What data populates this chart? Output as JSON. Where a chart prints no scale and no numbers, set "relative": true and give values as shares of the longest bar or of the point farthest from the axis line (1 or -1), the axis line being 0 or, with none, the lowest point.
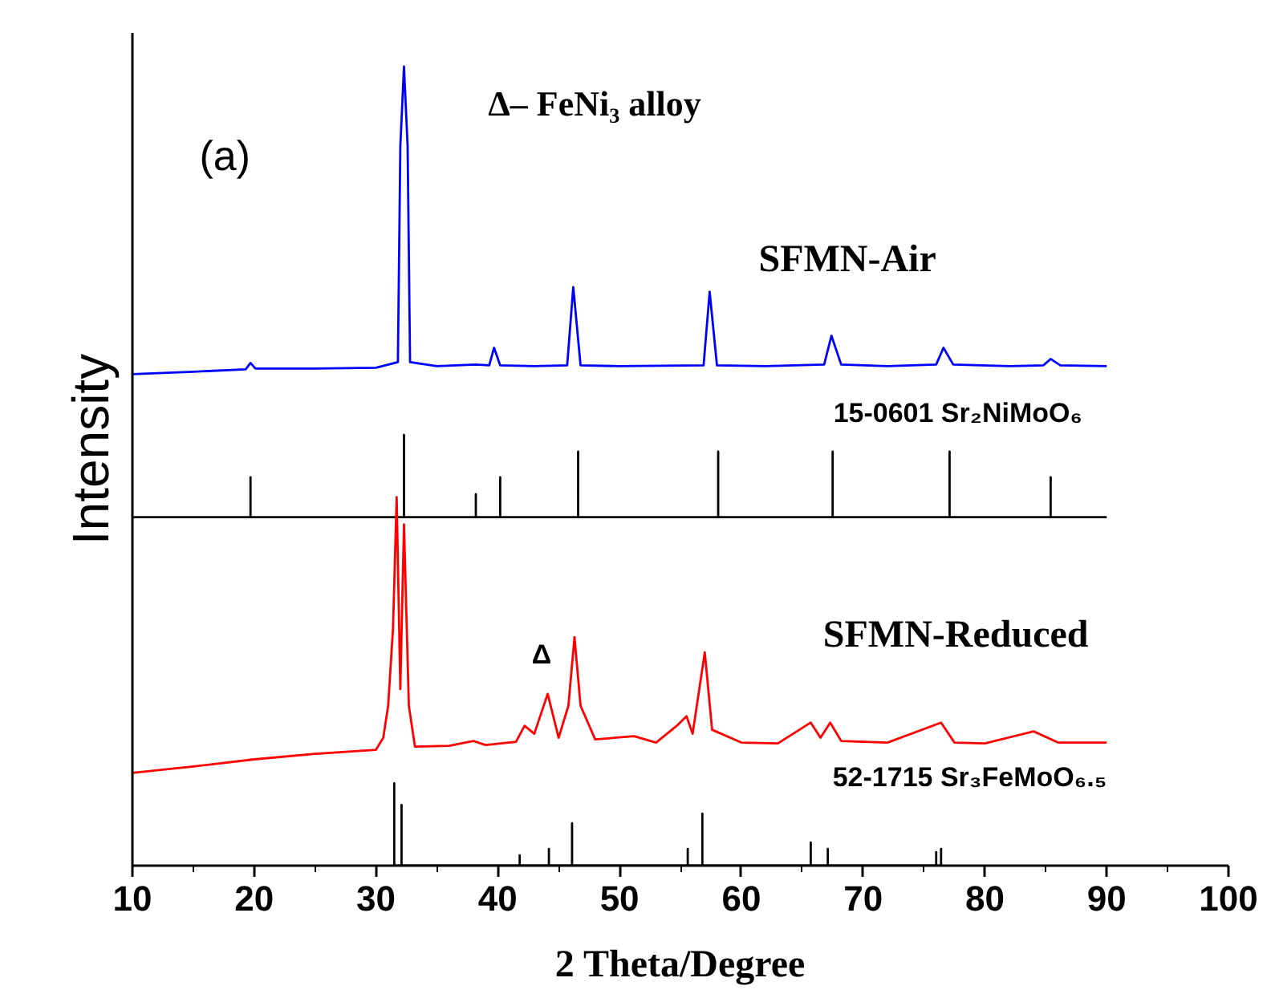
{
  "chart_data": {
    "type": "line",
    "relative": true,
    "xlabel": "2 Theta/Degree",
    "ylabel": "Intensity",
    "xlim": [
      10,
      100
    ],
    "xticks": [
      10,
      20,
      30,
      40,
      50,
      60,
      70,
      80,
      90,
      100
    ],
    "grid": false,
    "marker": "none",
    "line_style": "solid",
    "annotations": [
      "(a)",
      "Δ– FeNi₃ alloy",
      "SFMN-Air",
      "15-0601 Sr₂NiMoO₆",
      "SFMN-Reduced",
      "52-1715 Sr₃FeMoO₆.₅",
      {
        "text": "Δ",
        "x": 43.6,
        "y": 0.215
      }
    ],
    "series": [
      {
        "color": "#0000ff",
        "x": [
          10,
          15,
          19.3,
          19.7,
          20.1,
          25,
          30,
          31.8,
          32.0,
          32.3,
          32.6,
          32.8,
          35,
          38.2,
          39.3,
          39.7,
          40.2,
          43,
          45.7,
          46.2,
          46.8,
          50,
          56.9,
          57.4,
          58.0,
          62,
          66.8,
          67.4,
          68.2,
          72,
          76.0,
          76.6,
          77.4,
          82,
          84.8,
          85.4,
          86.2,
          90
        ],
        "values": [
          0.615,
          0.618,
          0.621,
          0.629,
          0.622,
          0.622,
          0.623,
          0.63,
          0.9,
          1.0,
          0.9,
          0.63,
          0.625,
          0.627,
          0.626,
          0.648,
          0.626,
          0.625,
          0.626,
          0.724,
          0.626,
          0.625,
          0.626,
          0.718,
          0.626,
          0.625,
          0.627,
          0.663,
          0.627,
          0.625,
          0.627,
          0.648,
          0.627,
          0.625,
          0.626,
          0.634,
          0.626,
          0.625
        ]
      },
      {
        "color": "#000000",
        "x": [
          10,
          19.7,
          19.7,
          19.7,
          32.3,
          32.3,
          32.3,
          38.2,
          38.2,
          38.2,
          40.2,
          40.2,
          40.2,
          46.6,
          46.6,
          46.6,
          58.1,
          58.1,
          58.1,
          67.5,
          67.5,
          67.5,
          77.1,
          77.1,
          77.1,
          85.4,
          85.4,
          85.4,
          90
        ],
        "values": [
          0.436,
          0.436,
          0.486,
          0.436,
          0.436,
          0.539,
          0.436,
          0.436,
          0.465,
          0.436,
          0.436,
          0.486,
          0.436,
          0.436,
          0.518,
          0.436,
          0.436,
          0.518,
          0.436,
          0.436,
          0.518,
          0.436,
          0.436,
          0.518,
          0.436,
          0.436,
          0.486,
          0.436,
          0.436
        ]
      },
      {
        "color": "#ff0000",
        "x": [
          10,
          15,
          20,
          25,
          30,
          30.6,
          31.0,
          31.4,
          31.7,
          32.0,
          32.3,
          32.7,
          33.2,
          36,
          38,
          39,
          41.5,
          42.2,
          43.0,
          44.1,
          45.0,
          45.8,
          46.3,
          46.8,
          48,
          51.2,
          53,
          54.7,
          55.5,
          56.0,
          57.0,
          57.6,
          60,
          63,
          65.7,
          66.5,
          67.3,
          68.2,
          72,
          76.4,
          77.5,
          80,
          84.0,
          86,
          90
        ],
        "values": [
          0.116,
          0.124,
          0.133,
          0.14,
          0.145,
          0.16,
          0.2,
          0.297,
          0.461,
          0.221,
          0.427,
          0.2,
          0.149,
          0.15,
          0.156,
          0.151,
          0.155,
          0.175,
          0.165,
          0.215,
          0.16,
          0.2,
          0.286,
          0.2,
          0.158,
          0.162,
          0.154,
          0.175,
          0.187,
          0.165,
          0.267,
          0.17,
          0.154,
          0.153,
          0.179,
          0.16,
          0.179,
          0.156,
          0.154,
          0.179,
          0.154,
          0.153,
          0.168,
          0.154,
          0.154
        ]
      },
      {
        "color": "#000000",
        "x": [
          31.5,
          31.5,
          31.5,
          32.1,
          32.1,
          32.1,
          41.8,
          41.8,
          41.8,
          44.2,
          44.2,
          44.2,
          46.1,
          46.1,
          46.1,
          55.6,
          55.6,
          55.6,
          56.8,
          56.8,
          56.8,
          65.7,
          65.7,
          65.7,
          67.1,
          67.1,
          67.1,
          76.0,
          76.0,
          76.0,
          76.4,
          76.4,
          76.4
        ],
        "values": [
          0,
          0.103,
          0,
          0,
          0.076,
          0,
          0,
          0.013,
          0,
          0,
          0.021,
          0,
          0,
          0.053,
          0,
          0,
          0.021,
          0,
          0,
          0.065,
          0,
          0,
          0.029,
          0,
          0,
          0.021,
          0,
          0,
          0.017,
          0,
          0,
          0.021,
          0
        ]
      }
    ]
  }
}
